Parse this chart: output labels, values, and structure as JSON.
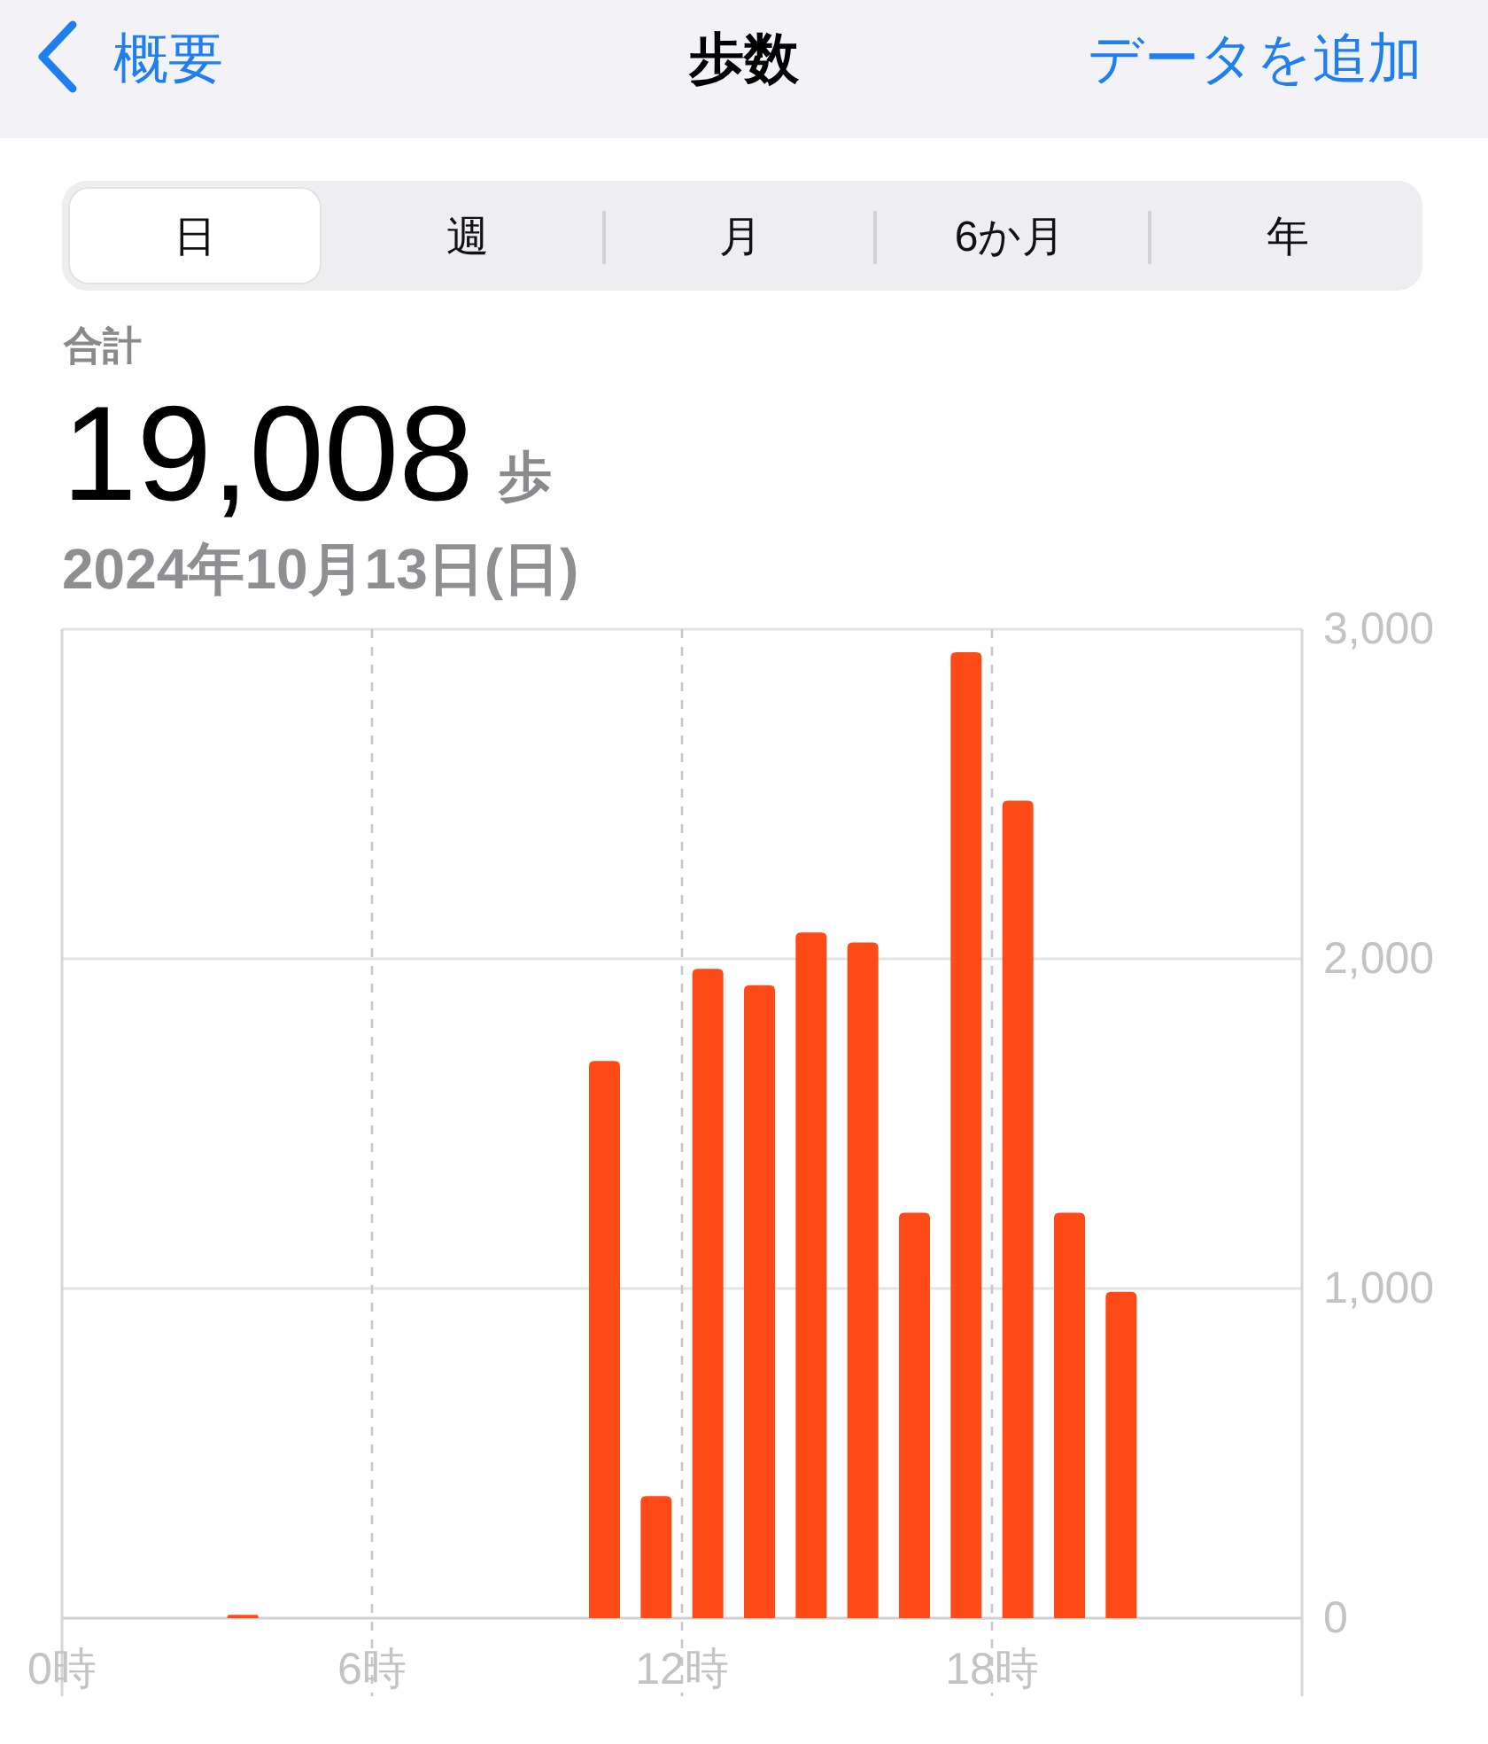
{
  "chart_data": {
    "type": "bar",
    "title": "歩数",
    "subtitle": "2024年10月13日(日)",
    "annotations": [
      "概要",
      "データを追加",
      "日",
      "週",
      "月",
      "6か月",
      "年",
      "合計",
      "19,008",
      "歩"
    ],
    "x": [
      3.5,
      10.5,
      11.5,
      12.5,
      13.5,
      14.5,
      15.5,
      16.5,
      17.5,
      18.5,
      19.5,
      20.5
    ],
    "values": [
      10,
      1690,
      370,
      1970,
      1920,
      2080,
      2050,
      1230,
      2930,
      2480,
      1230,
      990
    ],
    "color": "#fe4a16",
    "xlim": [
      0,
      24
    ],
    "xticks": [
      {
        "value": 0,
        "label": "0時"
      },
      {
        "value": 6,
        "label": "6時"
      },
      {
        "value": 12,
        "label": "12時"
      },
      {
        "value": 18,
        "label": "18時"
      }
    ],
    "ylim": [
      0,
      3000
    ],
    "yticks": [
      0,
      {
        "value": 1000,
        "label": "1,000"
      },
      {
        "value": 2000,
        "label": "2,000"
      },
      {
        "value": 3000,
        "label": "3,000"
      }
    ],
    "grid": true
  }
}
